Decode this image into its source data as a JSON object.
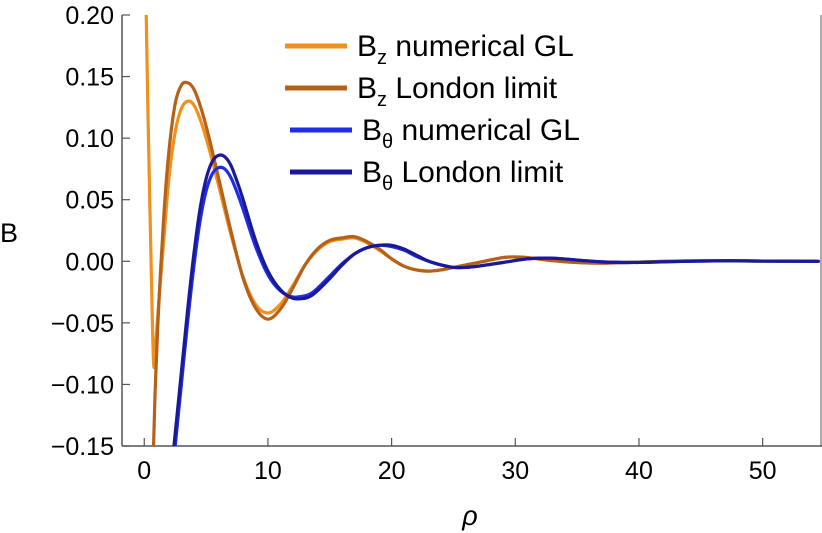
{
  "chart_data": {
    "type": "line",
    "xlabel": "ρ",
    "ylabel": "B",
    "xlim": [
      -1.8,
      54.8
    ],
    "ylim": [
      -0.15,
      0.2
    ],
    "x_ticks": [
      0,
      10,
      20,
      30,
      40,
      50
    ],
    "x_tick_labels": [
      "0",
      "10",
      "20",
      "30",
      "40",
      "50"
    ],
    "y_ticks": [
      0.2,
      0.15,
      0.1,
      0.05,
      0.0,
      -0.05,
      -0.1,
      -0.15
    ],
    "y_tick_labels": [
      "0.20",
      "0.15",
      "0.10",
      "0.05",
      "0.00",
      "−0.05",
      "−0.10",
      "−0.15"
    ],
    "grid": false,
    "legend_placement": "top-right",
    "series": [
      {
        "name": "B_z numerical GL",
        "legend": {
          "base": "B",
          "sub": "z",
          "rest": " numerical GL"
        },
        "color": "#F0901E",
        "x": [
          0.15,
          0.3,
          0.55,
          0.75,
          0.9,
          1.2,
          1.6,
          2.0,
          2.5,
          3.0,
          3.5,
          4.0,
          4.6,
          5.2,
          6.0,
          7.0,
          8.0,
          9.0,
          10.0,
          11.0,
          12.0,
          13.0,
          14.0,
          15.0,
          16.0,
          17.0,
          18.0,
          19.0,
          20.0,
          21.0,
          22.0,
          23.0,
          24.0,
          25.0,
          27.0,
          29.0,
          30.0,
          31.0,
          33.0,
          35.0,
          37.0,
          39.0,
          42.0,
          45.0,
          48.0,
          51.0,
          54.5
        ],
        "values": [
          0.205,
          0.12,
          0.0,
          -0.082,
          -0.07,
          -0.03,
          0.02,
          0.068,
          0.105,
          0.124,
          0.13,
          0.127,
          0.113,
          0.093,
          0.062,
          0.022,
          -0.013,
          -0.035,
          -0.042,
          -0.035,
          -0.02,
          -0.003,
          0.009,
          0.016,
          0.018,
          0.019,
          0.015,
          0.009,
          0.002,
          -0.004,
          -0.007,
          -0.008,
          -0.007,
          -0.005,
          -0.001,
          0.003,
          0.0035,
          0.003,
          0.0005,
          -0.001,
          -0.0015,
          -0.001,
          0.0,
          0.0005,
          0.0003,
          0.0,
          0.0
        ]
      },
      {
        "name": "B_z London limit",
        "legend": {
          "base": "B",
          "sub": "z",
          "rest": " London limit"
        },
        "color": "#B5611A",
        "x": [
          0.75,
          0.9,
          1.2,
          1.6,
          2.0,
          2.5,
          3.0,
          3.5,
          4.0,
          4.6,
          5.2,
          6.0,
          7.0,
          8.0,
          9.0,
          10.0,
          11.0,
          12.0,
          13.0,
          14.0,
          15.0,
          16.0,
          17.0,
          18.0,
          19.0,
          20.0,
          21.0,
          22.0,
          23.0,
          24.0,
          25.0,
          27.0,
          29.0,
          30.0,
          31.0,
          33.0,
          35.0,
          37.0,
          39.0,
          42.0,
          45.0,
          48.0,
          51.0,
          54.5
        ],
        "values": [
          -0.15,
          -0.1,
          -0.03,
          0.04,
          0.09,
          0.128,
          0.143,
          0.145,
          0.14,
          0.124,
          0.102,
          0.068,
          0.025,
          -0.014,
          -0.038,
          -0.047,
          -0.039,
          -0.022,
          -0.003,
          0.01,
          0.017,
          0.019,
          0.02,
          0.016,
          0.01,
          0.002,
          -0.004,
          -0.007,
          -0.008,
          -0.007,
          -0.005,
          -0.001,
          0.003,
          0.0035,
          0.003,
          0.0005,
          -0.001,
          -0.0015,
          -0.001,
          0.0,
          0.0005,
          0.0003,
          0.0,
          0.0
        ]
      },
      {
        "name": "B_θ numerical GL",
        "legend": {
          "base": "B",
          "sub": "θ",
          "rest": " numerical GL"
        },
        "color": "#1E2DE6",
        "x": [
          2.5,
          3.0,
          3.5,
          4.0,
          4.5,
          5.0,
          5.5,
          6.0,
          6.5,
          7.0,
          7.5,
          8.0,
          9.0,
          10.0,
          11.0,
          12.0,
          13.0,
          13.5,
          14.0,
          15.0,
          16.0,
          17.0,
          18.0,
          19.0,
          20.0,
          21.0,
          22.0,
          23.0,
          24.0,
          25.0,
          26.0,
          27.0,
          29.0,
          31.0,
          33.0,
          35.0,
          37.0,
          39.0,
          41.0,
          44.0,
          47.0,
          50.0,
          54.5
        ],
        "values": [
          -0.15,
          -0.1,
          -0.05,
          -0.005,
          0.032,
          0.057,
          0.071,
          0.076,
          0.075,
          0.068,
          0.056,
          0.042,
          0.012,
          -0.011,
          -0.024,
          -0.029,
          -0.028,
          -0.026,
          -0.022,
          -0.012,
          -0.002,
          0.006,
          0.011,
          0.013,
          0.012,
          0.009,
          0.004,
          0.0,
          -0.003,
          -0.005,
          -0.005,
          -0.004,
          -0.001,
          0.002,
          0.0025,
          0.001,
          -0.0005,
          -0.001,
          -0.0007,
          0.0,
          0.0004,
          0.0002,
          0.0
        ]
      },
      {
        "name": "B_θ London limit",
        "legend": {
          "base": "B",
          "sub": "θ",
          "rest": " London limit"
        },
        "color": "#1A1A99",
        "x": [
          2.4,
          3.0,
          3.5,
          4.0,
          4.5,
          5.0,
          5.5,
          6.0,
          6.5,
          7.0,
          7.5,
          8.0,
          9.0,
          10.0,
          11.0,
          12.0,
          13.0,
          13.5,
          14.0,
          15.0,
          16.0,
          17.0,
          18.0,
          19.0,
          20.0,
          21.0,
          22.0,
          23.0,
          24.0,
          25.0,
          26.0,
          27.0,
          29.0,
          31.0,
          33.0,
          35.0,
          37.0,
          39.0,
          41.0,
          44.0,
          47.0,
          50.0,
          54.5
        ],
        "values": [
          -0.15,
          -0.09,
          -0.04,
          0.005,
          0.042,
          0.067,
          0.081,
          0.086,
          0.085,
          0.078,
          0.065,
          0.05,
          0.017,
          -0.008,
          -0.023,
          -0.03,
          -0.03,
          -0.028,
          -0.024,
          -0.014,
          -0.003,
          0.006,
          0.011,
          0.013,
          0.013,
          0.01,
          0.005,
          0.0,
          -0.003,
          -0.005,
          -0.005,
          -0.004,
          -0.001,
          0.002,
          0.0025,
          0.001,
          -0.0005,
          -0.001,
          -0.0007,
          0.0,
          0.0004,
          0.0002,
          0.0
        ]
      }
    ]
  }
}
